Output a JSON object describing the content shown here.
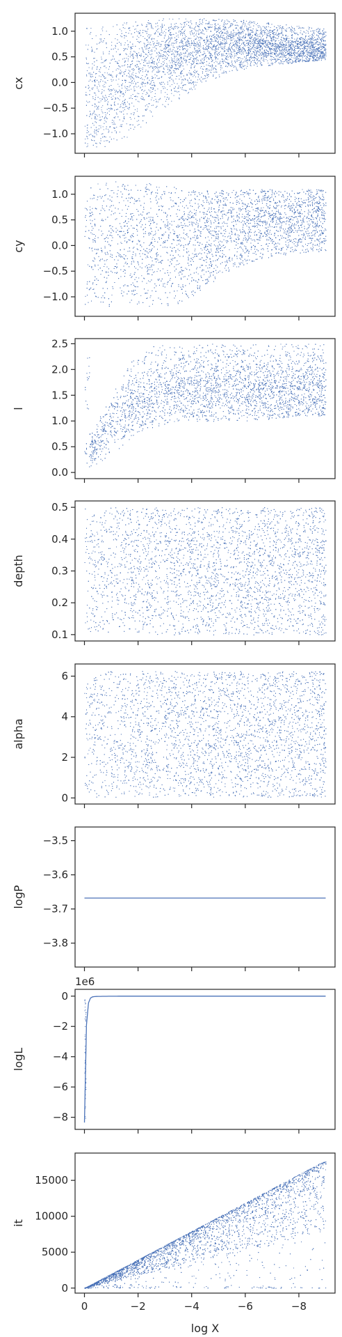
{
  "chart_data": {
    "type": "scatter",
    "shared_x": {
      "label": "log X",
      "range": [
        0.35,
        -9.35
      ],
      "ticks": [
        0,
        -2,
        -4,
        -6,
        -8
      ],
      "tick_labels": [
        "0",
        "−2",
        "−4",
        "−6",
        "−8"
      ]
    },
    "colors": {
      "points": "#4a72b8",
      "line": "#4a72b8",
      "frame": "#262626"
    },
    "panels": [
      {
        "ylabel": "cx",
        "ylim": [
          -1.38,
          1.35
        ],
        "yticks": [
          -1.0,
          -0.5,
          0.0,
          0.5,
          1.0
        ],
        "ytick_labels": [
          "−1.0",
          "−0.5",
          "0.0",
          "0.5",
          "1.0"
        ],
        "kind": "scatter",
        "y_low": [
          -1.25,
          -1.25,
          -1.0,
          -0.6,
          -0.3,
          0.0,
          0.2,
          0.3,
          0.35,
          0.4,
          0.45
        ],
        "y_high": [
          1.1,
          1.15,
          1.2,
          1.25,
          1.25,
          1.25,
          1.25,
          1.2,
          1.15,
          1.1,
          1.05
        ],
        "y_center": [
          -0.3,
          -0.5,
          0.3,
          0.5,
          0.6,
          0.7,
          0.75,
          0.75,
          0.7,
          0.6,
          0.5
        ],
        "concentration": 1.6
      },
      {
        "ylabel": "cy",
        "ylim": [
          -1.38,
          1.35
        ],
        "yticks": [
          -1.0,
          -0.5,
          0.0,
          0.5,
          1.0
        ],
        "ytick_labels": [
          "−1.0",
          "−0.5",
          "0.0",
          "0.5",
          "1.0"
        ],
        "kind": "scatter",
        "y_low": [
          -1.22,
          -1.22,
          -1.22,
          -1.22,
          -1.15,
          -0.8,
          -0.5,
          -0.3,
          -0.2,
          -0.15,
          -0.1
        ],
        "y_high": [
          1.25,
          1.25,
          1.25,
          1.2,
          1.15,
          1.1,
          1.1,
          1.1,
          1.1,
          1.1,
          1.1
        ],
        "y_center": [
          0.0,
          0.0,
          0.0,
          0.0,
          0.2,
          0.3,
          0.4,
          0.5,
          0.5,
          0.5,
          0.5
        ],
        "concentration": 1.0
      },
      {
        "ylabel": "l",
        "ylim": [
          -0.12,
          2.6
        ],
        "yticks": [
          0.0,
          0.5,
          1.0,
          1.5,
          2.0,
          2.5
        ],
        "ytick_labels": [
          "0.0",
          "0.5",
          "1.0",
          "1.5",
          "2.0",
          "2.5"
        ],
        "kind": "scatter",
        "y_low": [
          0.05,
          0.3,
          0.7,
          0.9,
          1.0,
          1.0,
          1.0,
          1.0,
          1.05,
          1.1,
          1.1
        ],
        "y_high": [
          0.6,
          1.4,
          2.2,
          2.5,
          2.5,
          2.5,
          2.5,
          2.5,
          2.5,
          2.5,
          2.5
        ],
        "y_center": [
          0.3,
          0.8,
          1.3,
          1.5,
          1.6,
          1.65,
          1.65,
          1.6,
          1.55,
          1.5,
          1.5
        ],
        "concentration": 1.8
      },
      {
        "ylabel": "depth",
        "ylim": [
          0.08,
          0.52
        ],
        "yticks": [
          0.1,
          0.2,
          0.3,
          0.4,
          0.5
        ],
        "ytick_labels": [
          "0.1",
          "0.2",
          "0.3",
          "0.4",
          "0.5"
        ],
        "kind": "scatter",
        "y_low": [
          0.1,
          0.1,
          0.1,
          0.1,
          0.1,
          0.1,
          0.1,
          0.1,
          0.1,
          0.1,
          0.1
        ],
        "y_high": [
          0.5,
          0.5,
          0.5,
          0.5,
          0.5,
          0.5,
          0.5,
          0.5,
          0.5,
          0.5,
          0.5
        ],
        "y_center": [
          0.3,
          0.3,
          0.32,
          0.33,
          0.33,
          0.33,
          0.32,
          0.31,
          0.3,
          0.3,
          0.3
        ],
        "concentration": 0.6
      },
      {
        "ylabel": "alpha",
        "ylim": [
          -0.3,
          6.6
        ],
        "yticks": [
          0,
          2,
          4,
          6
        ],
        "ytick_labels": [
          "0",
          "2",
          "4",
          "6"
        ],
        "kind": "scatter",
        "y_low": [
          0.05,
          0.05,
          0.05,
          0.05,
          0.05,
          0.05,
          0.05,
          0.05,
          0.05,
          0.05,
          0.05
        ],
        "y_high": [
          6.25,
          6.25,
          6.25,
          6.25,
          6.25,
          6.25,
          6.25,
          6.25,
          6.25,
          6.25,
          6.25
        ],
        "y_center": [
          3.1,
          3.1,
          3.1,
          3.1,
          3.1,
          3.1,
          3.1,
          3.1,
          3.1,
          3.1,
          3.1
        ],
        "concentration": 0.3
      },
      {
        "ylabel": "logP",
        "ylim": [
          -3.87,
          -3.46
        ],
        "yticks": [
          -3.5,
          -3.6,
          -3.7,
          -3.8
        ],
        "ytick_labels": [
          "−3.5",
          "−3.6",
          "−3.7",
          "−3.8"
        ],
        "kind": "hline",
        "value": -3.668
      },
      {
        "ylabel": "logL",
        "ylim": [
          -8.8,
          0.45
        ],
        "yticks": [
          0,
          -2,
          -4,
          -6,
          -8
        ],
        "ytick_labels": [
          "0",
          "−2",
          "−4",
          "−6",
          "−8"
        ],
        "offset_text": "1e6",
        "kind": "logL"
      },
      {
        "ylabel": "it",
        "ylim": [
          -700,
          18800
        ],
        "yticks": [
          0,
          5000,
          10000,
          15000
        ],
        "ytick_labels": [
          "0",
          "5000",
          "10000",
          "15000"
        ],
        "kind": "it",
        "max_it": 17800
      }
    ]
  }
}
